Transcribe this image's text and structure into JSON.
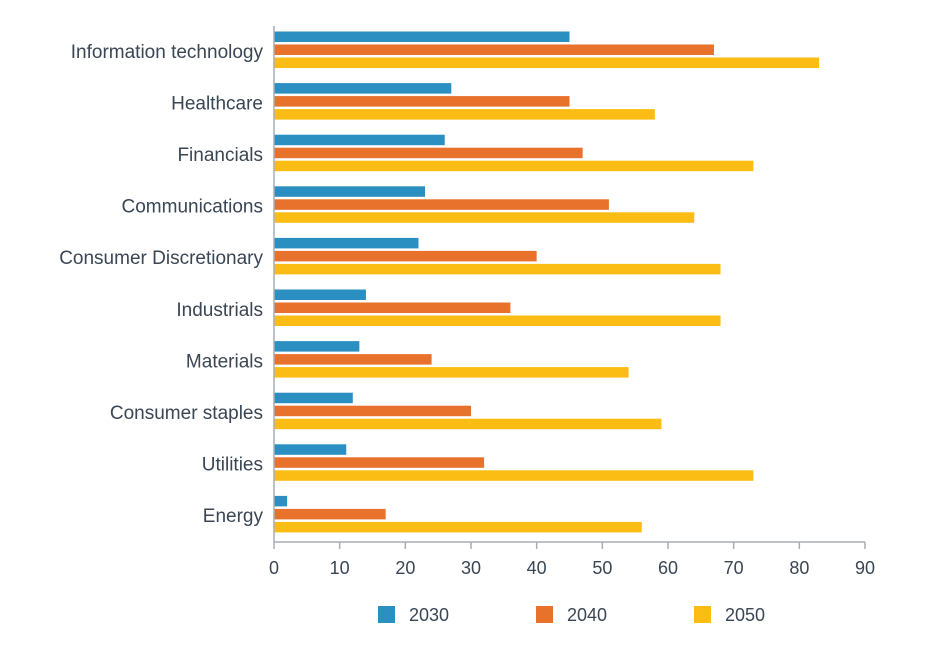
{
  "chart_data": {
    "type": "bar",
    "orientation": "horizontal",
    "categories": [
      "Information technology",
      "Healthcare",
      "Financials",
      "Communications",
      "Consumer Discretionary",
      "Industrials",
      "Materials",
      "Consumer staples",
      "Utilities",
      "Energy"
    ],
    "series": [
      {
        "name": "2030",
        "color": "#2b8fc2",
        "values": [
          45,
          27,
          26,
          23,
          22,
          14,
          13,
          12,
          11,
          2
        ]
      },
      {
        "name": "2040",
        "color": "#e8712c",
        "values": [
          67,
          45,
          47,
          51,
          40,
          36,
          24,
          30,
          32,
          17
        ]
      },
      {
        "name": "2050",
        "color": "#fbbd13",
        "values": [
          83,
          58,
          73,
          64,
          68,
          68,
          54,
          59,
          73,
          56
        ]
      }
    ],
    "xlim": [
      0,
      90
    ],
    "xticks": [
      0,
      10,
      20,
      30,
      40,
      50,
      60,
      70,
      80,
      90
    ],
    "title": "",
    "xlabel": "",
    "ylabel": "",
    "grid": false,
    "legend_position": "bottom"
  }
}
